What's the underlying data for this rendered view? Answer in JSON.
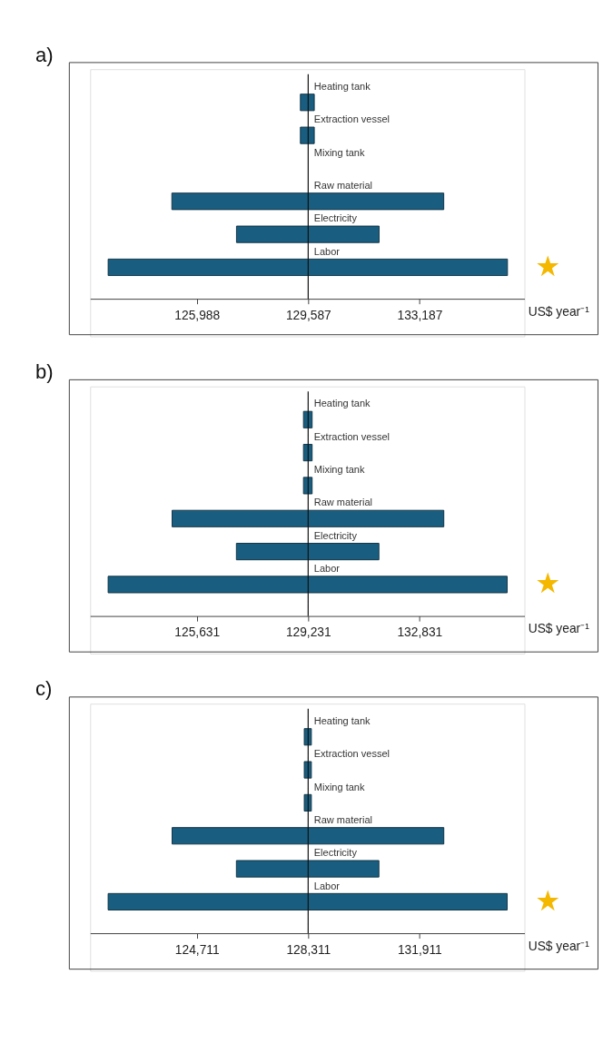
{
  "chart_data": [
    {
      "type": "bar",
      "title": "a)",
      "orientation": "horizontal",
      "categories": [
        "Heating tank",
        "Extraction vessel",
        "Mixing tank",
        "Raw material",
        "Electricity",
        "Labor"
      ],
      "base": [
        129335,
        129335,
        null,
        125180,
        127270,
        123120
      ],
      "values": [
        450,
        450,
        null,
        8790,
        4610,
        12910
      ],
      "color": "#195e80",
      "xlim": [
        122540,
        136580
      ],
      "xlabel": "US$ year⁻¹",
      "grid": false,
      "xticks": [
        {
          "value": 125988,
          "label": "125,988"
        },
        {
          "value": 129587,
          "label": "129,587"
        },
        {
          "value": 133187,
          "label": "133,187"
        }
      ],
      "ref_lines": [
        {
          "axis": "x",
          "value": 129587
        }
      ],
      "annotations": [
        "★"
      ]
    },
    {
      "type": "bar",
      "title": "b)",
      "orientation": "horizontal",
      "categories": [
        "Heating tank",
        "Extraction vessel",
        "Mixing tank",
        "Raw material",
        "Electricity",
        "Labor"
      ],
      "base": [
        129080,
        129080,
        129080,
        124830,
        126910,
        122760
      ],
      "values": [
        280,
        280,
        280,
        8790,
        4610,
        12910
      ],
      "color": "#195e80",
      "xlim": [
        122180,
        136230
      ],
      "xlabel": "US$ year⁻¹",
      "grid": false,
      "xticks": [
        {
          "value": 125631,
          "label": "125,631"
        },
        {
          "value": 129231,
          "label": "129,231"
        },
        {
          "value": 132831,
          "label": "132,831"
        }
      ],
      "ref_lines": [
        {
          "axis": "x",
          "value": 129231
        }
      ],
      "annotations": [
        "★"
      ]
    },
    {
      "type": "bar",
      "title": "c)",
      "orientation": "horizontal",
      "categories": [
        "Heating tank",
        "Extraction vessel",
        "Mixing tank",
        "Raw material",
        "Electricity",
        "Labor"
      ],
      "base": [
        128185,
        128185,
        128185,
        123910,
        125990,
        121840
      ],
      "values": [
        230,
        230,
        230,
        8790,
        4610,
        12910
      ],
      "color": "#195e80",
      "xlim": [
        121260,
        135310
      ],
      "xlabel": "US$ year⁻¹",
      "grid": false,
      "xticks": [
        {
          "value": 124711,
          "label": "124,711"
        },
        {
          "value": 128311,
          "label": "128,311"
        },
        {
          "value": 131911,
          "label": "131,911"
        }
      ],
      "ref_lines": [
        {
          "axis": "x",
          "value": 128311
        }
      ],
      "annotations": [
        "★"
      ]
    }
  ]
}
